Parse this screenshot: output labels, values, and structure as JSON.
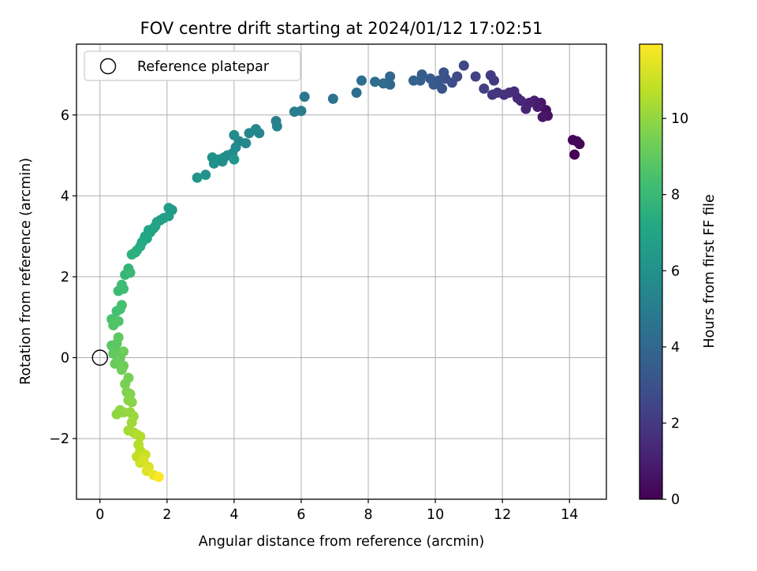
{
  "chart_data": {
    "type": "scatter",
    "title": "FOV centre drift starting at 2024/01/12 17:02:51",
    "xlabel": "Angular distance from reference (arcmin)",
    "ylabel": "Rotation from reference (arcmin)",
    "xlim": [
      -0.7,
      15.1
    ],
    "ylim": [
      -3.5,
      7.75
    ],
    "xticks": [
      0,
      2,
      4,
      6,
      8,
      10,
      12,
      14
    ],
    "yticks": [
      -2,
      0,
      2,
      4,
      6
    ],
    "grid": true,
    "legend": {
      "position": "upper-left",
      "entries": [
        {
          "label": "Reference platepar",
          "marker": "open-circle"
        }
      ]
    },
    "reference_point": {
      "x": 0.0,
      "y": 0.0
    },
    "colorbar": {
      "label": "Hours from first FF file",
      "colormap": "viridis",
      "min": 0,
      "max": 11.95,
      "ticks": [
        0,
        2,
        4,
        6,
        8,
        10
      ]
    },
    "points": [
      {
        "x": 14.15,
        "y": 5.02,
        "t": 0.05
      },
      {
        "x": 14.3,
        "y": 5.28,
        "t": 0.1
      },
      {
        "x": 14.1,
        "y": 5.38,
        "t": 0.15
      },
      {
        "x": 14.22,
        "y": 5.35,
        "t": 0.2
      },
      {
        "x": 13.3,
        "y": 6.12,
        "t": 0.5
      },
      {
        "x": 13.35,
        "y": 5.98,
        "t": 0.6
      },
      {
        "x": 13.2,
        "y": 5.95,
        "t": 0.7
      },
      {
        "x": 13.15,
        "y": 6.3,
        "t": 0.8
      },
      {
        "x": 13.05,
        "y": 6.2,
        "t": 0.9
      },
      {
        "x": 12.95,
        "y": 6.35,
        "t": 1.0
      },
      {
        "x": 12.8,
        "y": 6.3,
        "t": 1.1
      },
      {
        "x": 12.7,
        "y": 6.15,
        "t": 1.2
      },
      {
        "x": 12.55,
        "y": 6.35,
        "t": 1.3
      },
      {
        "x": 12.45,
        "y": 6.42,
        "t": 1.4
      },
      {
        "x": 12.35,
        "y": 6.58,
        "t": 1.5
      },
      {
        "x": 12.2,
        "y": 6.55,
        "t": 1.6
      },
      {
        "x": 12.05,
        "y": 6.5,
        "t": 1.7
      },
      {
        "x": 11.85,
        "y": 6.55,
        "t": 1.8
      },
      {
        "x": 11.7,
        "y": 6.5,
        "t": 1.9
      },
      {
        "x": 11.75,
        "y": 6.85,
        "t": 2.0
      },
      {
        "x": 11.65,
        "y": 6.98,
        "t": 2.1
      },
      {
        "x": 11.45,
        "y": 6.65,
        "t": 2.2
      },
      {
        "x": 11.2,
        "y": 6.95,
        "t": 2.3
      },
      {
        "x": 10.85,
        "y": 7.22,
        "t": 2.6
      },
      {
        "x": 10.65,
        "y": 6.95,
        "t": 2.7
      },
      {
        "x": 10.5,
        "y": 6.8,
        "t": 2.8
      },
      {
        "x": 10.3,
        "y": 6.9,
        "t": 2.9
      },
      {
        "x": 10.25,
        "y": 7.05,
        "t": 3.0
      },
      {
        "x": 10.2,
        "y": 6.65,
        "t": 3.1
      },
      {
        "x": 10.1,
        "y": 6.85,
        "t": 3.2
      },
      {
        "x": 9.95,
        "y": 6.75,
        "t": 3.3
      },
      {
        "x": 9.85,
        "y": 6.9,
        "t": 3.4
      },
      {
        "x": 9.6,
        "y": 7.0,
        "t": 3.5
      },
      {
        "x": 9.55,
        "y": 6.85,
        "t": 3.6
      },
      {
        "x": 9.35,
        "y": 6.85,
        "t": 3.7
      },
      {
        "x": 8.65,
        "y": 6.95,
        "t": 3.9
      },
      {
        "x": 8.65,
        "y": 6.75,
        "t": 4.0
      },
      {
        "x": 8.45,
        "y": 6.78,
        "t": 4.1
      },
      {
        "x": 8.2,
        "y": 6.82,
        "t": 4.2
      },
      {
        "x": 7.8,
        "y": 6.85,
        "t": 4.3
      },
      {
        "x": 7.65,
        "y": 6.55,
        "t": 4.4
      },
      {
        "x": 6.95,
        "y": 6.4,
        "t": 4.6
      },
      {
        "x": 6.1,
        "y": 6.45,
        "t": 4.8
      },
      {
        "x": 6.0,
        "y": 6.1,
        "t": 4.9
      },
      {
        "x": 5.8,
        "y": 6.08,
        "t": 5.0
      },
      {
        "x": 5.25,
        "y": 5.85,
        "t": 5.2
      },
      {
        "x": 5.28,
        "y": 5.72,
        "t": 5.3
      },
      {
        "x": 4.75,
        "y": 5.55,
        "t": 5.4
      },
      {
        "x": 4.65,
        "y": 5.65,
        "t": 5.45
      },
      {
        "x": 4.45,
        "y": 5.55,
        "t": 5.5
      },
      {
        "x": 4.35,
        "y": 5.3,
        "t": 5.55
      },
      {
        "x": 4.15,
        "y": 5.35,
        "t": 5.6
      },
      {
        "x": 4.05,
        "y": 5.2,
        "t": 5.65
      },
      {
        "x": 4.0,
        "y": 5.5,
        "t": 5.7
      },
      {
        "x": 3.95,
        "y": 5.05,
        "t": 5.75
      },
      {
        "x": 3.8,
        "y": 5.0,
        "t": 5.8
      },
      {
        "x": 3.7,
        "y": 4.95,
        "t": 5.85
      },
      {
        "x": 3.65,
        "y": 4.85,
        "t": 5.9
      },
      {
        "x": 3.55,
        "y": 4.9,
        "t": 5.95
      },
      {
        "x": 3.4,
        "y": 4.8,
        "t": 6.0
      },
      {
        "x": 3.35,
        "y": 4.95,
        "t": 6.05
      },
      {
        "x": 3.15,
        "y": 4.52,
        "t": 6.1
      },
      {
        "x": 2.9,
        "y": 4.45,
        "t": 6.2
      },
      {
        "x": 4.0,
        "y": 4.9,
        "t": 6.25
      },
      {
        "x": 2.15,
        "y": 3.65,
        "t": 6.5
      },
      {
        "x": 2.05,
        "y": 3.7,
        "t": 6.6
      },
      {
        "x": 2.05,
        "y": 3.5,
        "t": 6.65
      },
      {
        "x": 1.9,
        "y": 3.45,
        "t": 6.7
      },
      {
        "x": 1.8,
        "y": 3.4,
        "t": 6.75
      },
      {
        "x": 1.7,
        "y": 3.35,
        "t": 6.8
      },
      {
        "x": 1.65,
        "y": 3.25,
        "t": 6.85
      },
      {
        "x": 1.6,
        "y": 3.2,
        "t": 6.9
      },
      {
        "x": 1.5,
        "y": 3.1,
        "t": 6.95
      },
      {
        "x": 1.45,
        "y": 3.15,
        "t": 7.0
      },
      {
        "x": 1.4,
        "y": 2.95,
        "t": 7.05
      },
      {
        "x": 1.35,
        "y": 3.0,
        "t": 7.1
      },
      {
        "x": 1.3,
        "y": 2.9,
        "t": 7.15
      },
      {
        "x": 1.25,
        "y": 2.85,
        "t": 7.2
      },
      {
        "x": 1.2,
        "y": 2.75,
        "t": 7.3
      },
      {
        "x": 1.1,
        "y": 2.65,
        "t": 7.4
      },
      {
        "x": 1.05,
        "y": 2.6,
        "t": 7.5
      },
      {
        "x": 0.95,
        "y": 2.55,
        "t": 7.6
      },
      {
        "x": 0.85,
        "y": 2.2,
        "t": 7.8
      },
      {
        "x": 0.75,
        "y": 2.05,
        "t": 7.9
      },
      {
        "x": 0.9,
        "y": 2.1,
        "t": 8.0
      },
      {
        "x": 0.55,
        "y": 1.65,
        "t": 8.1
      },
      {
        "x": 0.65,
        "y": 1.8,
        "t": 8.15
      },
      {
        "x": 0.7,
        "y": 1.7,
        "t": 8.2
      },
      {
        "x": 0.5,
        "y": 1.15,
        "t": 8.3
      },
      {
        "x": 0.6,
        "y": 1.2,
        "t": 8.35
      },
      {
        "x": 0.65,
        "y": 1.3,
        "t": 8.4
      },
      {
        "x": 0.35,
        "y": 0.95,
        "t": 8.5
      },
      {
        "x": 0.45,
        "y": 0.9,
        "t": 8.55
      },
      {
        "x": 0.55,
        "y": 0.9,
        "t": 8.6
      },
      {
        "x": 0.4,
        "y": 0.8,
        "t": 8.65
      },
      {
        "x": 0.35,
        "y": 0.3,
        "t": 8.8
      },
      {
        "x": 0.45,
        "y": 0.25,
        "t": 8.85
      },
      {
        "x": 0.5,
        "y": 0.35,
        "t": 8.9
      },
      {
        "x": 0.55,
        "y": 0.5,
        "t": 8.95
      },
      {
        "x": 0.4,
        "y": 0.1,
        "t": 9.0
      },
      {
        "x": 0.5,
        "y": 0.05,
        "t": 9.05
      },
      {
        "x": 0.6,
        "y": 0.0,
        "t": 9.1
      },
      {
        "x": 0.45,
        "y": -0.15,
        "t": 9.15
      },
      {
        "x": 0.55,
        "y": -0.1,
        "t": 9.2
      },
      {
        "x": 0.7,
        "y": -0.2,
        "t": 9.25
      },
      {
        "x": 0.7,
        "y": 0.15,
        "t": 9.3
      },
      {
        "x": 0.65,
        "y": -0.3,
        "t": 9.35
      },
      {
        "x": 0.85,
        "y": -0.5,
        "t": 9.4
      },
      {
        "x": 0.75,
        "y": -0.65,
        "t": 9.5
      },
      {
        "x": 0.8,
        "y": -0.85,
        "t": 9.6
      },
      {
        "x": 0.9,
        "y": -0.9,
        "t": 9.7
      },
      {
        "x": 0.85,
        "y": -1.05,
        "t": 9.8
      },
      {
        "x": 0.95,
        "y": -1.1,
        "t": 9.85
      },
      {
        "x": 0.6,
        "y": -1.3,
        "t": 9.9
      },
      {
        "x": 0.5,
        "y": -1.4,
        "t": 9.95
      },
      {
        "x": 0.7,
        "y": -1.35,
        "t": 10.0
      },
      {
        "x": 0.9,
        "y": -1.35,
        "t": 10.05
      },
      {
        "x": 1.0,
        "y": -1.45,
        "t": 10.1
      },
      {
        "x": 0.95,
        "y": -1.6,
        "t": 10.2
      },
      {
        "x": 0.85,
        "y": -1.8,
        "t": 10.3
      },
      {
        "x": 1.0,
        "y": -1.85,
        "t": 10.4
      },
      {
        "x": 1.1,
        "y": -1.9,
        "t": 10.5
      },
      {
        "x": 1.2,
        "y": -1.95,
        "t": 10.55
      },
      {
        "x": 1.15,
        "y": -2.15,
        "t": 10.6
      },
      {
        "x": 1.2,
        "y": -2.3,
        "t": 10.7
      },
      {
        "x": 1.1,
        "y": -2.45,
        "t": 10.8
      },
      {
        "x": 1.25,
        "y": -2.5,
        "t": 10.9
      },
      {
        "x": 1.35,
        "y": -2.4,
        "t": 11.0
      },
      {
        "x": 1.2,
        "y": -2.6,
        "t": 11.1
      },
      {
        "x": 1.3,
        "y": -2.55,
        "t": 11.2
      },
      {
        "x": 1.45,
        "y": -2.7,
        "t": 11.3
      },
      {
        "x": 1.4,
        "y": -2.8,
        "t": 11.4
      },
      {
        "x": 1.6,
        "y": -2.9,
        "t": 11.6
      },
      {
        "x": 1.75,
        "y": -2.95,
        "t": 11.9
      }
    ]
  }
}
